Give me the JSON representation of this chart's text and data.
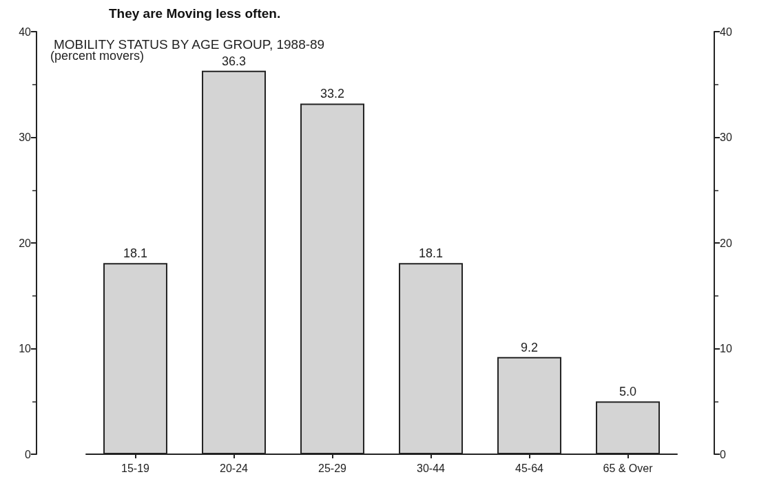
{
  "chart_data": {
    "type": "bar",
    "title": "MOBILITY STATUS BY AGE GROUP, 1988-89",
    "ylabel": "(percent movers)",
    "annotations": [
      "They are Moving less often."
    ],
    "categories": [
      "15-19",
      "20-24",
      "25-29",
      "30-44",
      "45-64",
      "65 & Over"
    ],
    "values": [
      18.1,
      36.3,
      33.2,
      18.1,
      9.2,
      5.0
    ],
    "value_labels": [
      "18.1",
      "36.3",
      "33.2",
      "18.1",
      "9.2",
      "5.0"
    ],
    "color": "#d4d4d4",
    "ylim": [
      0,
      40
    ],
    "yticks": [
      0,
      10,
      20,
      30,
      40
    ],
    "y2lim": [
      0,
      40
    ],
    "y2ticks": [
      0,
      10,
      20,
      30,
      40
    ],
    "grid": false
  }
}
